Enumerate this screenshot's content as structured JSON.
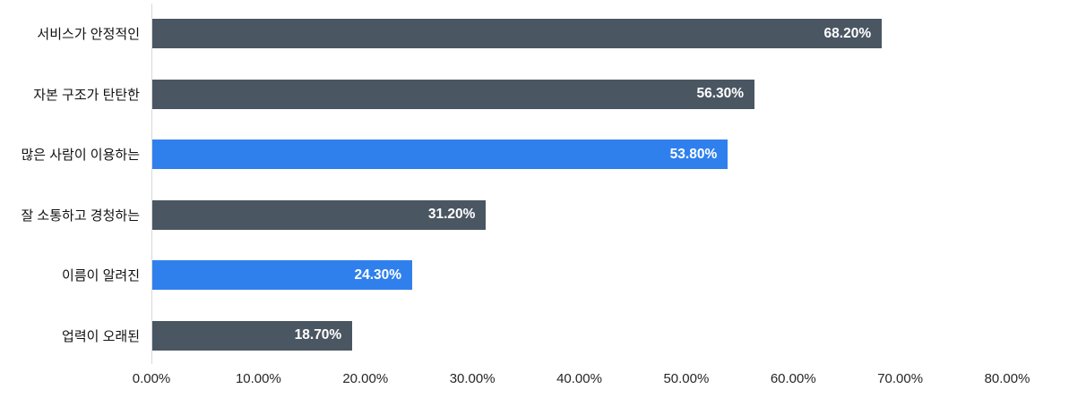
{
  "chart_data": {
    "type": "bar",
    "orientation": "horizontal",
    "title": "",
    "xlabel": "",
    "ylabel": "",
    "xlim": [
      0,
      80
    ],
    "grid": false,
    "legend": "none",
    "categories": [
      "서비스가 안정적인",
      "자본 구조가 탄탄한",
      "많은 사람이 이용하는",
      "잘 소통하고 경청하는",
      "이름이 알려진",
      "업력이 오래된"
    ],
    "values": [
      68.2,
      56.3,
      53.8,
      31.2,
      24.3,
      18.7
    ],
    "value_labels": [
      "68.20%",
      "56.30%",
      "53.80%",
      "31.20%",
      "24.30%",
      "18.70%"
    ],
    "bar_color_keys": [
      "slate",
      "slate",
      "blue",
      "slate",
      "blue",
      "slate"
    ],
    "colors": {
      "slate": "#4A5662",
      "blue": "#2F80ED",
      "value_text": "#ffffff",
      "axis_line": "#d9d9d9",
      "tick_text": "#262626",
      "category_text": "#111111"
    },
    "x_ticks": [
      {
        "value": 0,
        "label": "0.00%"
      },
      {
        "value": 10,
        "label": "10.00%"
      },
      {
        "value": 20,
        "label": "20.00%"
      },
      {
        "value": 30,
        "label": "30.00%"
      },
      {
        "value": 40,
        "label": "40.00%"
      },
      {
        "value": 50,
        "label": "50.00%"
      },
      {
        "value": 60,
        "label": "60.00%"
      },
      {
        "value": 70,
        "label": "70.00%"
      },
      {
        "value": 80,
        "label": "80.00%"
      }
    ]
  }
}
